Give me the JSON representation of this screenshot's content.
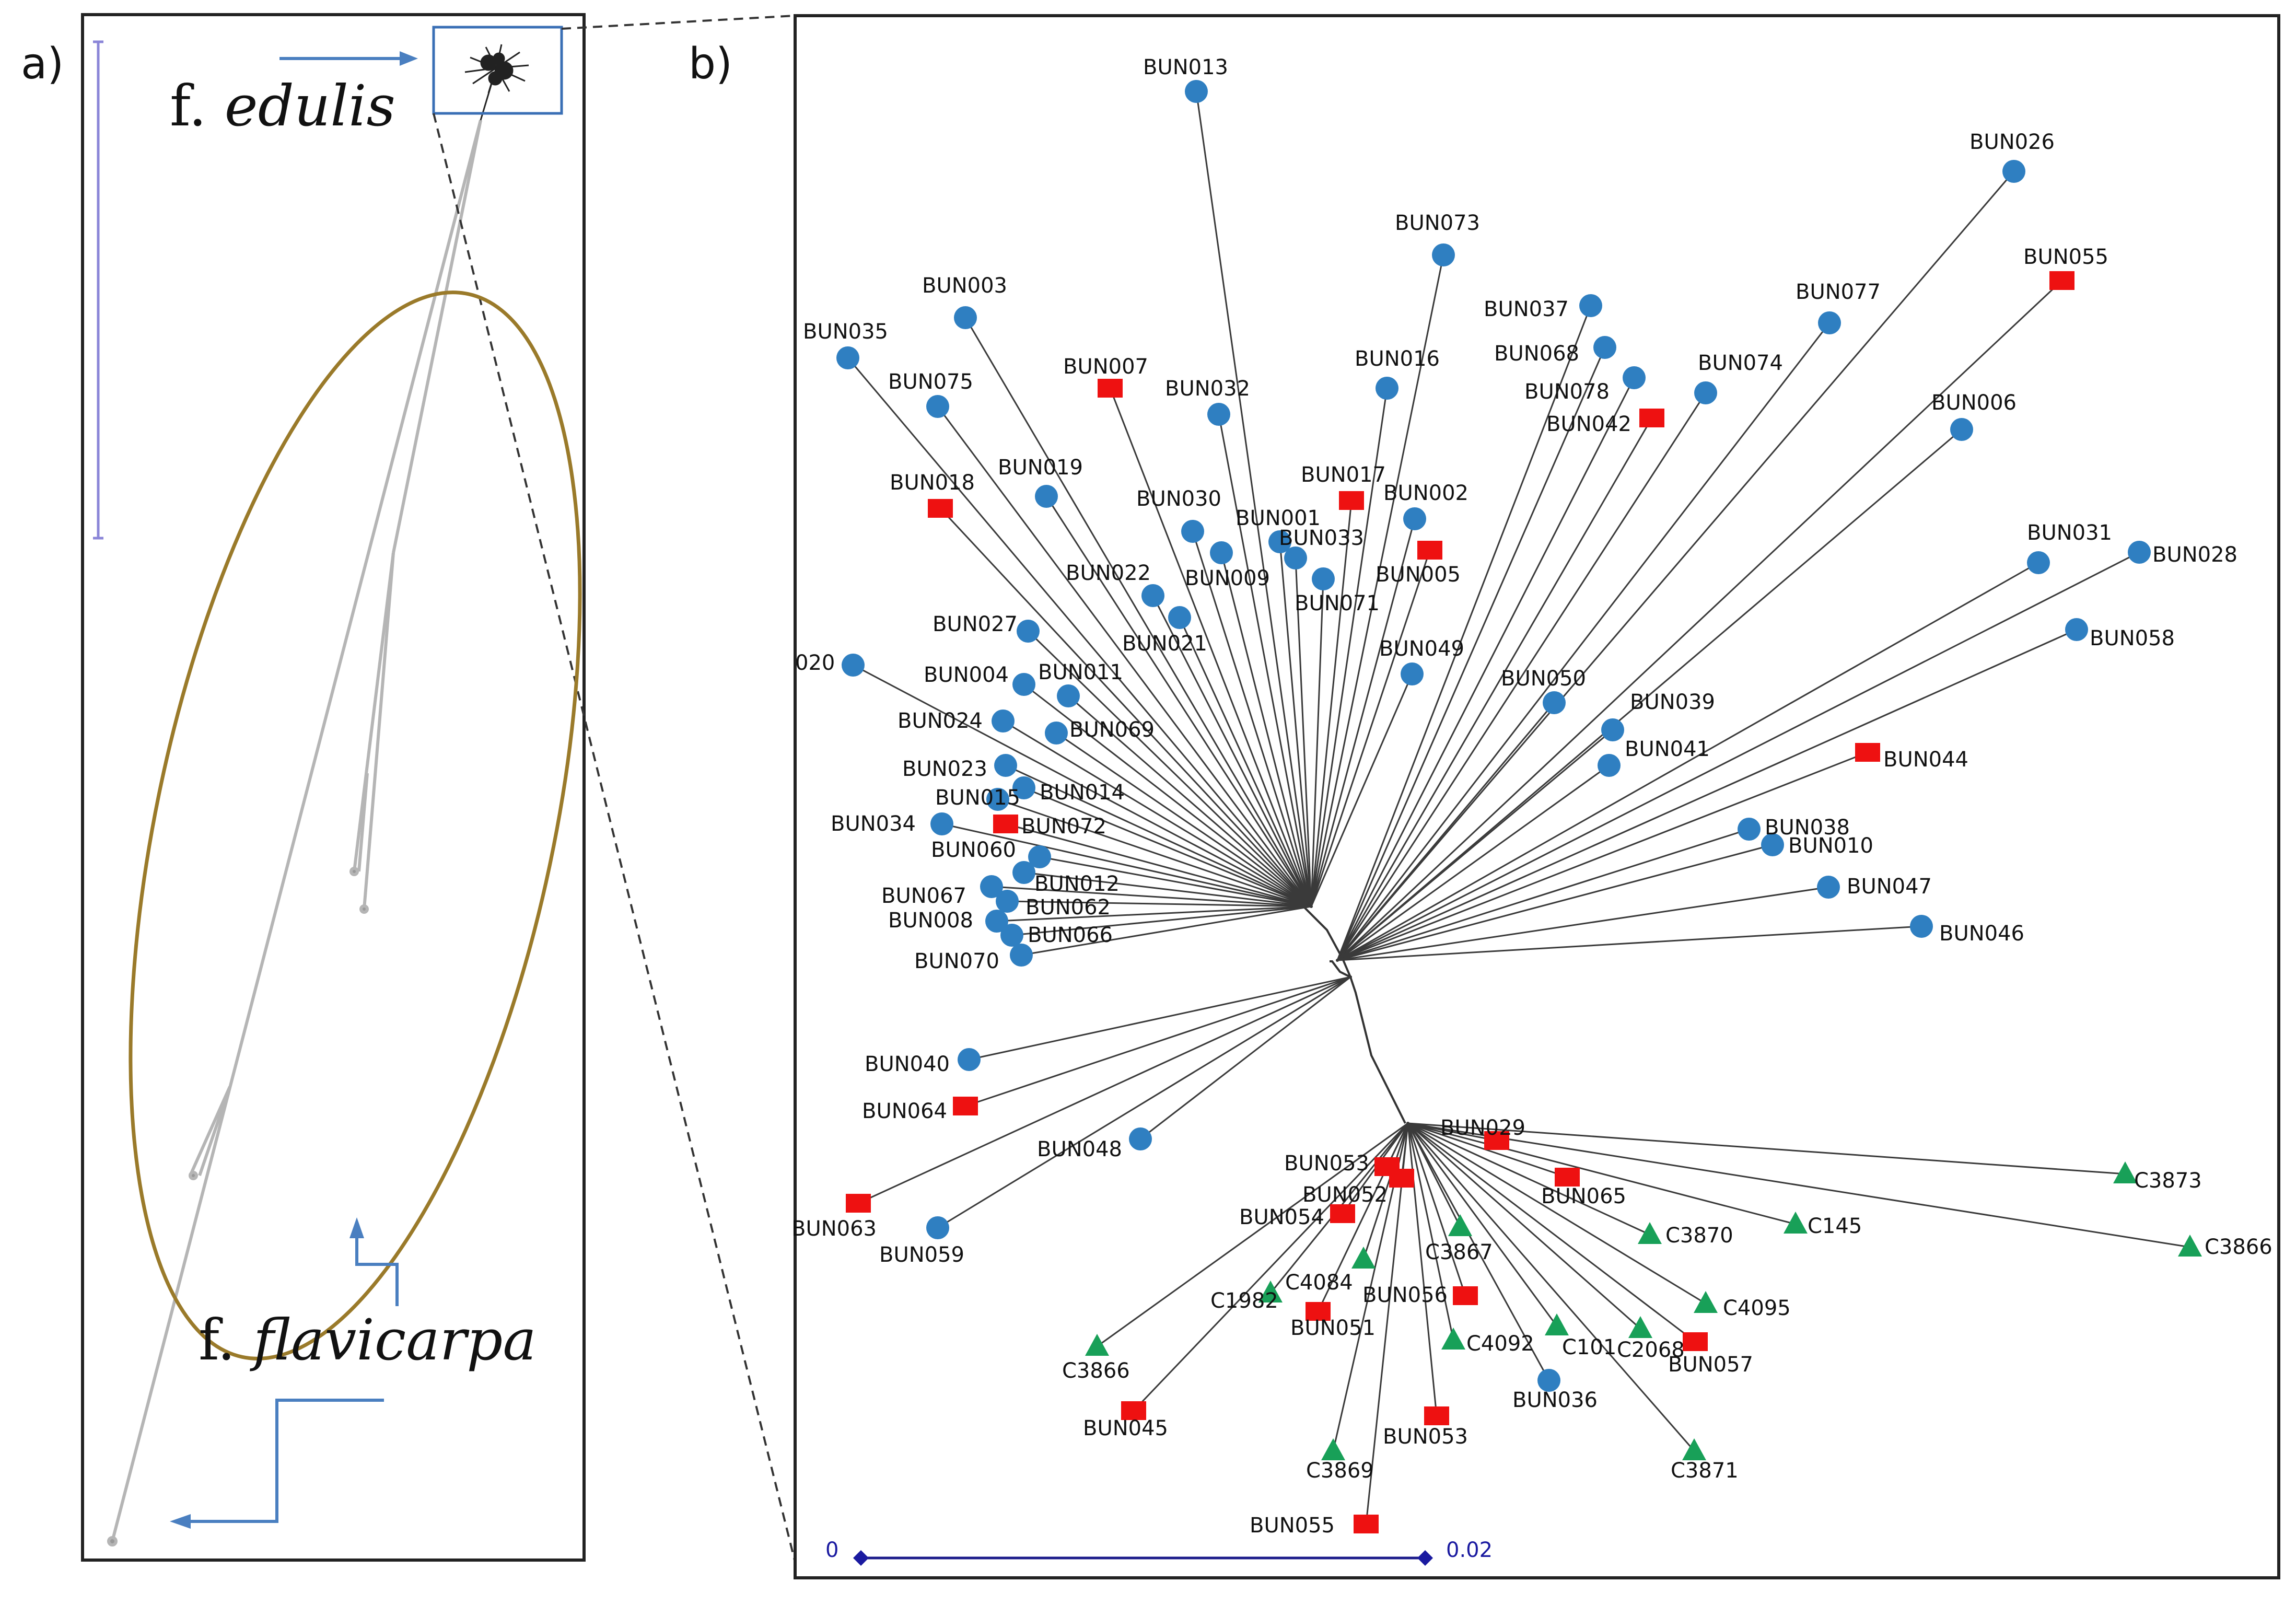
{
  "panels": {
    "a": {
      "label": "a)",
      "forma_prefix": "f.",
      "edulis": "edulis",
      "flavicarpa": "flavicarpa"
    },
    "b": {
      "label": "b)"
    }
  },
  "scale_bar": {
    "min_label": "0",
    "max_label": "0.02"
  },
  "colors": {
    "blue_circle": "#2f7fc1",
    "red_square": "#ee1111",
    "green_triangle": "#18a058",
    "branch": "#3a3a3a",
    "ellipse": "#9a7a2a",
    "arrow": "#4a7fc0"
  },
  "legend_shapes": {
    "circle": "blue-circle",
    "square": "red-square",
    "triangle": "green-triangle"
  },
  "tree_b": {
    "branch_groups": [
      {
        "name": "cluster-a",
        "hub": "hub-a"
      },
      {
        "name": "cluster-b",
        "hub": "hub-b"
      },
      {
        "name": "cluster-c",
        "hub": "hub-c"
      },
      {
        "name": "cluster-d",
        "hub": "hub-d"
      }
    ],
    "nodes": [
      {
        "id": "BUN013",
        "shape": "circle",
        "hub": "a"
      },
      {
        "id": "BUN073",
        "shape": "circle",
        "hub": "a"
      },
      {
        "id": "BUN003",
        "shape": "circle",
        "hub": "a"
      },
      {
        "id": "BUN035",
        "shape": "circle",
        "hub": "a"
      },
      {
        "id": "BUN075",
        "shape": "circle",
        "hub": "a"
      },
      {
        "id": "BUN007",
        "shape": "square",
        "hub": "a"
      },
      {
        "id": "BUN032",
        "shape": "circle",
        "hub": "a"
      },
      {
        "id": "BUN016",
        "shape": "circle",
        "hub": "a"
      },
      {
        "id": "BUN037",
        "shape": "circle",
        "hub": "b"
      },
      {
        "id": "BUN068",
        "shape": "circle",
        "hub": "b"
      },
      {
        "id": "BUN078",
        "shape": "circle",
        "hub": "b"
      },
      {
        "id": "BUN042",
        "shape": "square",
        "hub": "b"
      },
      {
        "id": "BUN074",
        "shape": "circle",
        "hub": "b"
      },
      {
        "id": "BUN077",
        "shape": "circle",
        "hub": "b"
      },
      {
        "id": "BUN026",
        "shape": "circle",
        "hub": "b"
      },
      {
        "id": "BUN055",
        "shape": "square",
        "hub": "b"
      },
      {
        "id": "BUN006",
        "shape": "circle",
        "hub": "b"
      },
      {
        "id": "BUN018",
        "shape": "square",
        "hub": "a"
      },
      {
        "id": "BUN019",
        "shape": "circle",
        "hub": "a"
      },
      {
        "id": "BUN017",
        "shape": "square",
        "hub": "a"
      },
      {
        "id": "BUN002",
        "shape": "circle",
        "hub": "a"
      },
      {
        "id": "BUN030",
        "shape": "circle",
        "hub": "a"
      },
      {
        "id": "BUN001",
        "shape": "circle",
        "hub": "a"
      },
      {
        "id": "BUN033",
        "shape": "circle",
        "hub": "a"
      },
      {
        "id": "BUN005",
        "shape": "square",
        "hub": "a"
      },
      {
        "id": "BUN009",
        "shape": "circle",
        "hub": "a"
      },
      {
        "id": "BUN071",
        "shape": "circle",
        "hub": "a"
      },
      {
        "id": "BUN022",
        "shape": "circle",
        "hub": "a"
      },
      {
        "id": "BUN021",
        "shape": "circle",
        "hub": "a"
      },
      {
        "id": "BUN027",
        "shape": "circle",
        "hub": "a"
      },
      {
        "id": "BUN049",
        "shape": "circle",
        "hub": "a"
      },
      {
        "id": "BUN031",
        "shape": "circle",
        "hub": "b"
      },
      {
        "id": "BUN028",
        "shape": "circle",
        "hub": "b"
      },
      {
        "id": "BUN058",
        "shape": "circle",
        "hub": "b"
      },
      {
        "id": "020",
        "shape": "circle",
        "hub": "a"
      },
      {
        "id": "BUN004",
        "shape": "circle",
        "hub": "a"
      },
      {
        "id": "BUN011",
        "shape": "circle",
        "hub": "a"
      },
      {
        "id": "BUN050",
        "shape": "circle",
        "hub": "b"
      },
      {
        "id": "BUN039",
        "shape": "circle",
        "hub": "b"
      },
      {
        "id": "BUN024",
        "shape": "circle",
        "hub": "a"
      },
      {
        "id": "BUN069",
        "shape": "circle",
        "hub": "a"
      },
      {
        "id": "BUN041",
        "shape": "circle",
        "hub": "b"
      },
      {
        "id": "BUN044",
        "shape": "square",
        "hub": "b"
      },
      {
        "id": "BUN023",
        "shape": "circle",
        "hub": "a"
      },
      {
        "id": "BUN014",
        "shape": "circle",
        "hub": "a"
      },
      {
        "id": "BUN015",
        "shape": "circle",
        "hub": "a"
      },
      {
        "id": "BUN034",
        "shape": "circle",
        "hub": "a"
      },
      {
        "id": "BUN072",
        "shape": "square",
        "hub": "a"
      },
      {
        "id": "BUN038",
        "shape": "circle",
        "hub": "b"
      },
      {
        "id": "BUN010",
        "shape": "circle",
        "hub": "b"
      },
      {
        "id": "BUN060",
        "shape": "circle",
        "hub": "a"
      },
      {
        "id": "BUN012",
        "shape": "circle",
        "hub": "a"
      },
      {
        "id": "BUN047",
        "shape": "circle",
        "hub": "b"
      },
      {
        "id": "BUN067",
        "shape": "circle",
        "hub": "a"
      },
      {
        "id": "BUN062",
        "shape": "circle",
        "hub": "a"
      },
      {
        "id": "BUN008",
        "shape": "circle",
        "hub": "a"
      },
      {
        "id": "BUN066",
        "shape": "circle",
        "hub": "a"
      },
      {
        "id": "BUN046",
        "shape": "circle",
        "hub": "b"
      },
      {
        "id": "BUN070",
        "shape": "circle",
        "hub": "a"
      },
      {
        "id": "BUN040",
        "shape": "circle",
        "hub": "c"
      },
      {
        "id": "BUN064",
        "shape": "square",
        "hub": "c"
      },
      {
        "id": "BUN048",
        "shape": "circle",
        "hub": "c"
      },
      {
        "id": "BUN063",
        "shape": "square",
        "hub": "c"
      },
      {
        "id": "BUN059",
        "shape": "circle",
        "hub": "c"
      },
      {
        "id": "BUN029",
        "shape": "square",
        "hub": "d"
      },
      {
        "id": "BUN053",
        "shape": "square",
        "hub": "d"
      },
      {
        "id": "BUN052",
        "shape": "square",
        "hub": "d"
      },
      {
        "id": "BUN065",
        "shape": "square",
        "hub": "d"
      },
      {
        "id": "C3873",
        "shape": "triangle",
        "hub": "d"
      },
      {
        "id": "BUN054",
        "shape": "square",
        "hub": "d"
      },
      {
        "id": "C3867",
        "shape": "triangle",
        "hub": "d"
      },
      {
        "id": "C3870",
        "shape": "triangle",
        "hub": "d"
      },
      {
        "id": "C145",
        "shape": "triangle",
        "hub": "d"
      },
      {
        "id": "C3866",
        "shape": "triangle",
        "hub": "d"
      },
      {
        "id": "C4084",
        "shape": "triangle",
        "hub": "d"
      },
      {
        "id": "C1982",
        "shape": "triangle",
        "hub": "d"
      },
      {
        "id": "BUN056",
        "shape": "square",
        "hub": "d"
      },
      {
        "id": "BUN051",
        "shape": "square",
        "hub": "d"
      },
      {
        "id": "C4095",
        "shape": "triangle",
        "hub": "d"
      },
      {
        "id": "C4092",
        "shape": "triangle",
        "hub": "d"
      },
      {
        "id": "C101",
        "shape": "triangle",
        "hub": "d"
      },
      {
        "id": "C2068",
        "shape": "triangle",
        "hub": "d"
      },
      {
        "id": "BUN057",
        "shape": "square",
        "hub": "d"
      },
      {
        "id": "C3866",
        "shape": "triangle",
        "hub": "d"
      },
      {
        "id": "BUN036",
        "shape": "circle",
        "hub": "d"
      },
      {
        "id": "BUN045",
        "shape": "square",
        "hub": "d"
      },
      {
        "id": "BUN053",
        "shape": "square",
        "hub": "d"
      },
      {
        "id": "C3869",
        "shape": "triangle",
        "hub": "d"
      },
      {
        "id": "C3871",
        "shape": "triangle",
        "hub": "d"
      },
      {
        "id": "BUN055",
        "shape": "square",
        "hub": "d"
      }
    ]
  }
}
